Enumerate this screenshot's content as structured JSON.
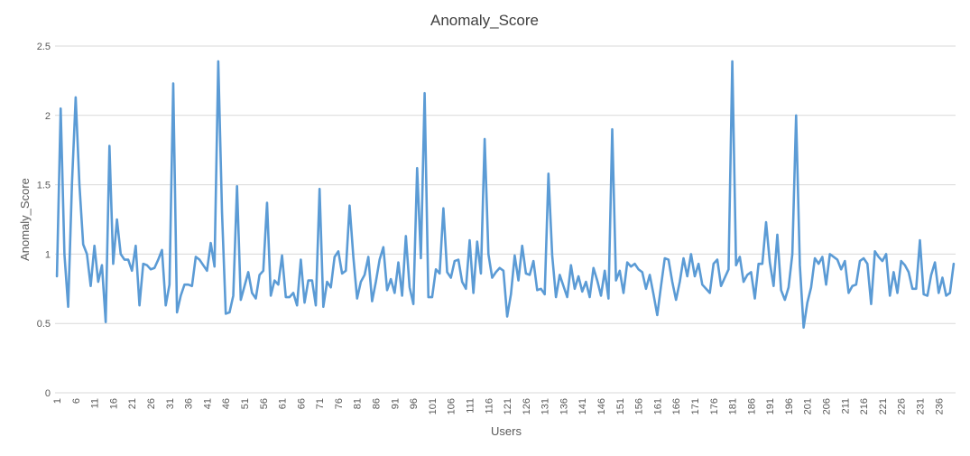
{
  "chart_data": {
    "type": "line",
    "title": "Anomaly_Score",
    "xlabel": "Users",
    "ylabel": "Anomaly_Score",
    "ylim": [
      0,
      2.5
    ],
    "yticks": [
      0,
      0.5,
      1,
      1.5,
      2,
      2.5
    ],
    "ytick_labels": [
      "0",
      "0.5",
      "1",
      "1.5",
      "2",
      "2.5"
    ],
    "xtick_labels": [
      "1",
      "6",
      "11",
      "16",
      "21",
      "26",
      "31",
      "36",
      "41",
      "46",
      "51",
      "56",
      "61",
      "66",
      "71",
      "76",
      "81",
      "86",
      "91",
      "96",
      "101",
      "106",
      "111",
      "116",
      "121",
      "126",
      "131",
      "136",
      "141",
      "146",
      "151",
      "156",
      "161",
      "166",
      "171",
      "176",
      "181",
      "186",
      "191",
      "196",
      "201",
      "206",
      "211",
      "216",
      "221",
      "226",
      "231",
      "236"
    ],
    "grid": true,
    "legend": "none",
    "series_color": "#5b9bd5",
    "series": [
      {
        "values": [
          0.84,
          2.05,
          1.0,
          0.62,
          1.5,
          2.13,
          1.5,
          1.07,
          1.0,
          0.77,
          1.06,
          0.8,
          0.92,
          0.51,
          1.78,
          0.93,
          1.25,
          1.0,
          0.96,
          0.96,
          0.88,
          1.06,
          0.63,
          0.93,
          0.92,
          0.89,
          0.9,
          0.96,
          1.03,
          0.63,
          0.78,
          2.23,
          0.58,
          0.7,
          0.78,
          0.78,
          0.77,
          0.98,
          0.96,
          0.92,
          0.88,
          1.08,
          0.91,
          2.39,
          1.3,
          0.57,
          0.58,
          0.7,
          1.49,
          0.67,
          0.77,
          0.87,
          0.72,
          0.68,
          0.85,
          0.88,
          1.37,
          0.7,
          0.81,
          0.78,
          0.99,
          0.69,
          0.69,
          0.72,
          0.63,
          0.96,
          0.65,
          0.81,
          0.81,
          0.63,
          1.47,
          0.62,
          0.8,
          0.76,
          0.98,
          1.02,
          0.86,
          0.88,
          1.35,
          0.98,
          0.68,
          0.8,
          0.85,
          0.98,
          0.66,
          0.8,
          0.96,
          1.05,
          0.74,
          0.82,
          0.72,
          0.94,
          0.7,
          1.13,
          0.76,
          0.64,
          1.62,
          0.97,
          2.16,
          0.69,
          0.69,
          0.89,
          0.86,
          1.33,
          0.87,
          0.83,
          0.95,
          0.96,
          0.8,
          0.75,
          1.1,
          0.72,
          1.09,
          0.86,
          1.83,
          1.0,
          0.83,
          0.87,
          0.9,
          0.88,
          0.55,
          0.71,
          0.99,
          0.81,
          1.06,
          0.86,
          0.85,
          0.95,
          0.74,
          0.75,
          0.71,
          1.58,
          0.99,
          0.69,
          0.85,
          0.77,
          0.69,
          0.92,
          0.75,
          0.84,
          0.73,
          0.8,
          0.69,
          0.9,
          0.81,
          0.7,
          0.88,
          0.68,
          1.9,
          0.81,
          0.88,
          0.72,
          0.94,
          0.91,
          0.93,
          0.89,
          0.87,
          0.75,
          0.85,
          0.71,
          0.56,
          0.77,
          0.97,
          0.96,
          0.8,
          0.67,
          0.8,
          0.97,
          0.84,
          1.0,
          0.84,
          0.93,
          0.78,
          0.75,
          0.72,
          0.93,
          0.96,
          0.77,
          0.83,
          0.89,
          2.39,
          0.92,
          0.98,
          0.8,
          0.85,
          0.87,
          0.68,
          0.93,
          0.93,
          1.23,
          0.94,
          0.77,
          1.14,
          0.74,
          0.67,
          0.76,
          1.0,
          2.0,
          0.92,
          0.47,
          0.65,
          0.76,
          0.97,
          0.93,
          0.98,
          0.78,
          1.0,
          0.98,
          0.96,
          0.89,
          0.95,
          0.72,
          0.77,
          0.78,
          0.95,
          0.97,
          0.93,
          0.64,
          1.02,
          0.98,
          0.95,
          1.0,
          0.7,
          0.87,
          0.72,
          0.95,
          0.92,
          0.87,
          0.75,
          0.75,
          1.1,
          0.71,
          0.7,
          0.85,
          0.94,
          0.72,
          0.83,
          0.7,
          0.72,
          0.93
        ]
      }
    ]
  }
}
